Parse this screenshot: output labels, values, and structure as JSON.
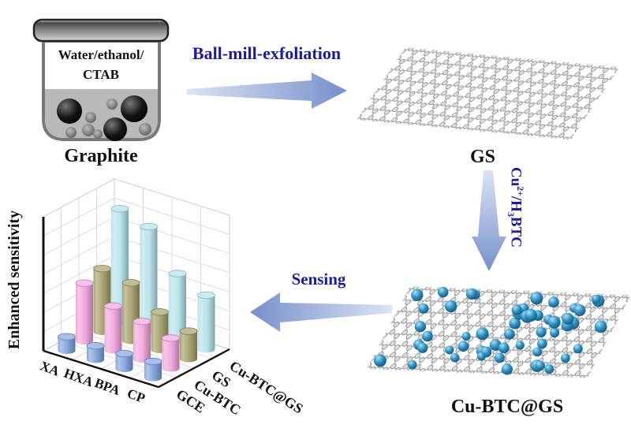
{
  "beaker": {
    "solvent_line1": "Water/ethanol/",
    "solvent_line2": "CTAB",
    "caption": "Graphite"
  },
  "steps": {
    "exfoliation_label": "Ball-mill-exfoliation",
    "coordination_label_parts": {
      "pre": "Cu",
      "sup": "2+",
      "mid": "/H",
      "sub": "3",
      "post": "BTC"
    },
    "sensing_label": "Sensing"
  },
  "molecules": {
    "gs_caption": "GS",
    "cubtcgs_caption": "Cu-BTC@GS"
  },
  "colors": {
    "accent_text_blue": "#1c1ca0",
    "text_black": "#111111",
    "arrow_light": "#dce4f4",
    "arrow_dark": "#7790cb",
    "particle_blue": "#2e8fc0",
    "carbon_gray": "#dcdcdc",
    "liquid_gray": "#b9b9b9"
  },
  "chart_data": {
    "type": "bar",
    "style": "3d-cylinder",
    "title": "",
    "ylabel": "Enhanced sensitivity",
    "categories": [
      "XA",
      "HXA",
      "BPA",
      "CP"
    ],
    "series": [
      {
        "name": "GCE",
        "color": "#7fa2dd",
        "values": [
          1.1,
          1.1,
          1.2,
          1.3
        ]
      },
      {
        "name": "Cu-BTC",
        "color": "#f0a4dd",
        "values": [
          4.6,
          3.5,
          3.0,
          2.4
        ]
      },
      {
        "name": "GS",
        "color": "#a49e6b",
        "values": [
          5.0,
          4.6,
          3.0,
          2.2
        ]
      },
      {
        "name": "Cu-BTC@GS",
        "color": "#b4e2ea",
        "values": [
          9.0,
          8.3,
          5.3,
          4.3
        ]
      }
    ],
    "ylim": [
      0,
      10
    ],
    "grid": true,
    "legend_position": "none"
  }
}
